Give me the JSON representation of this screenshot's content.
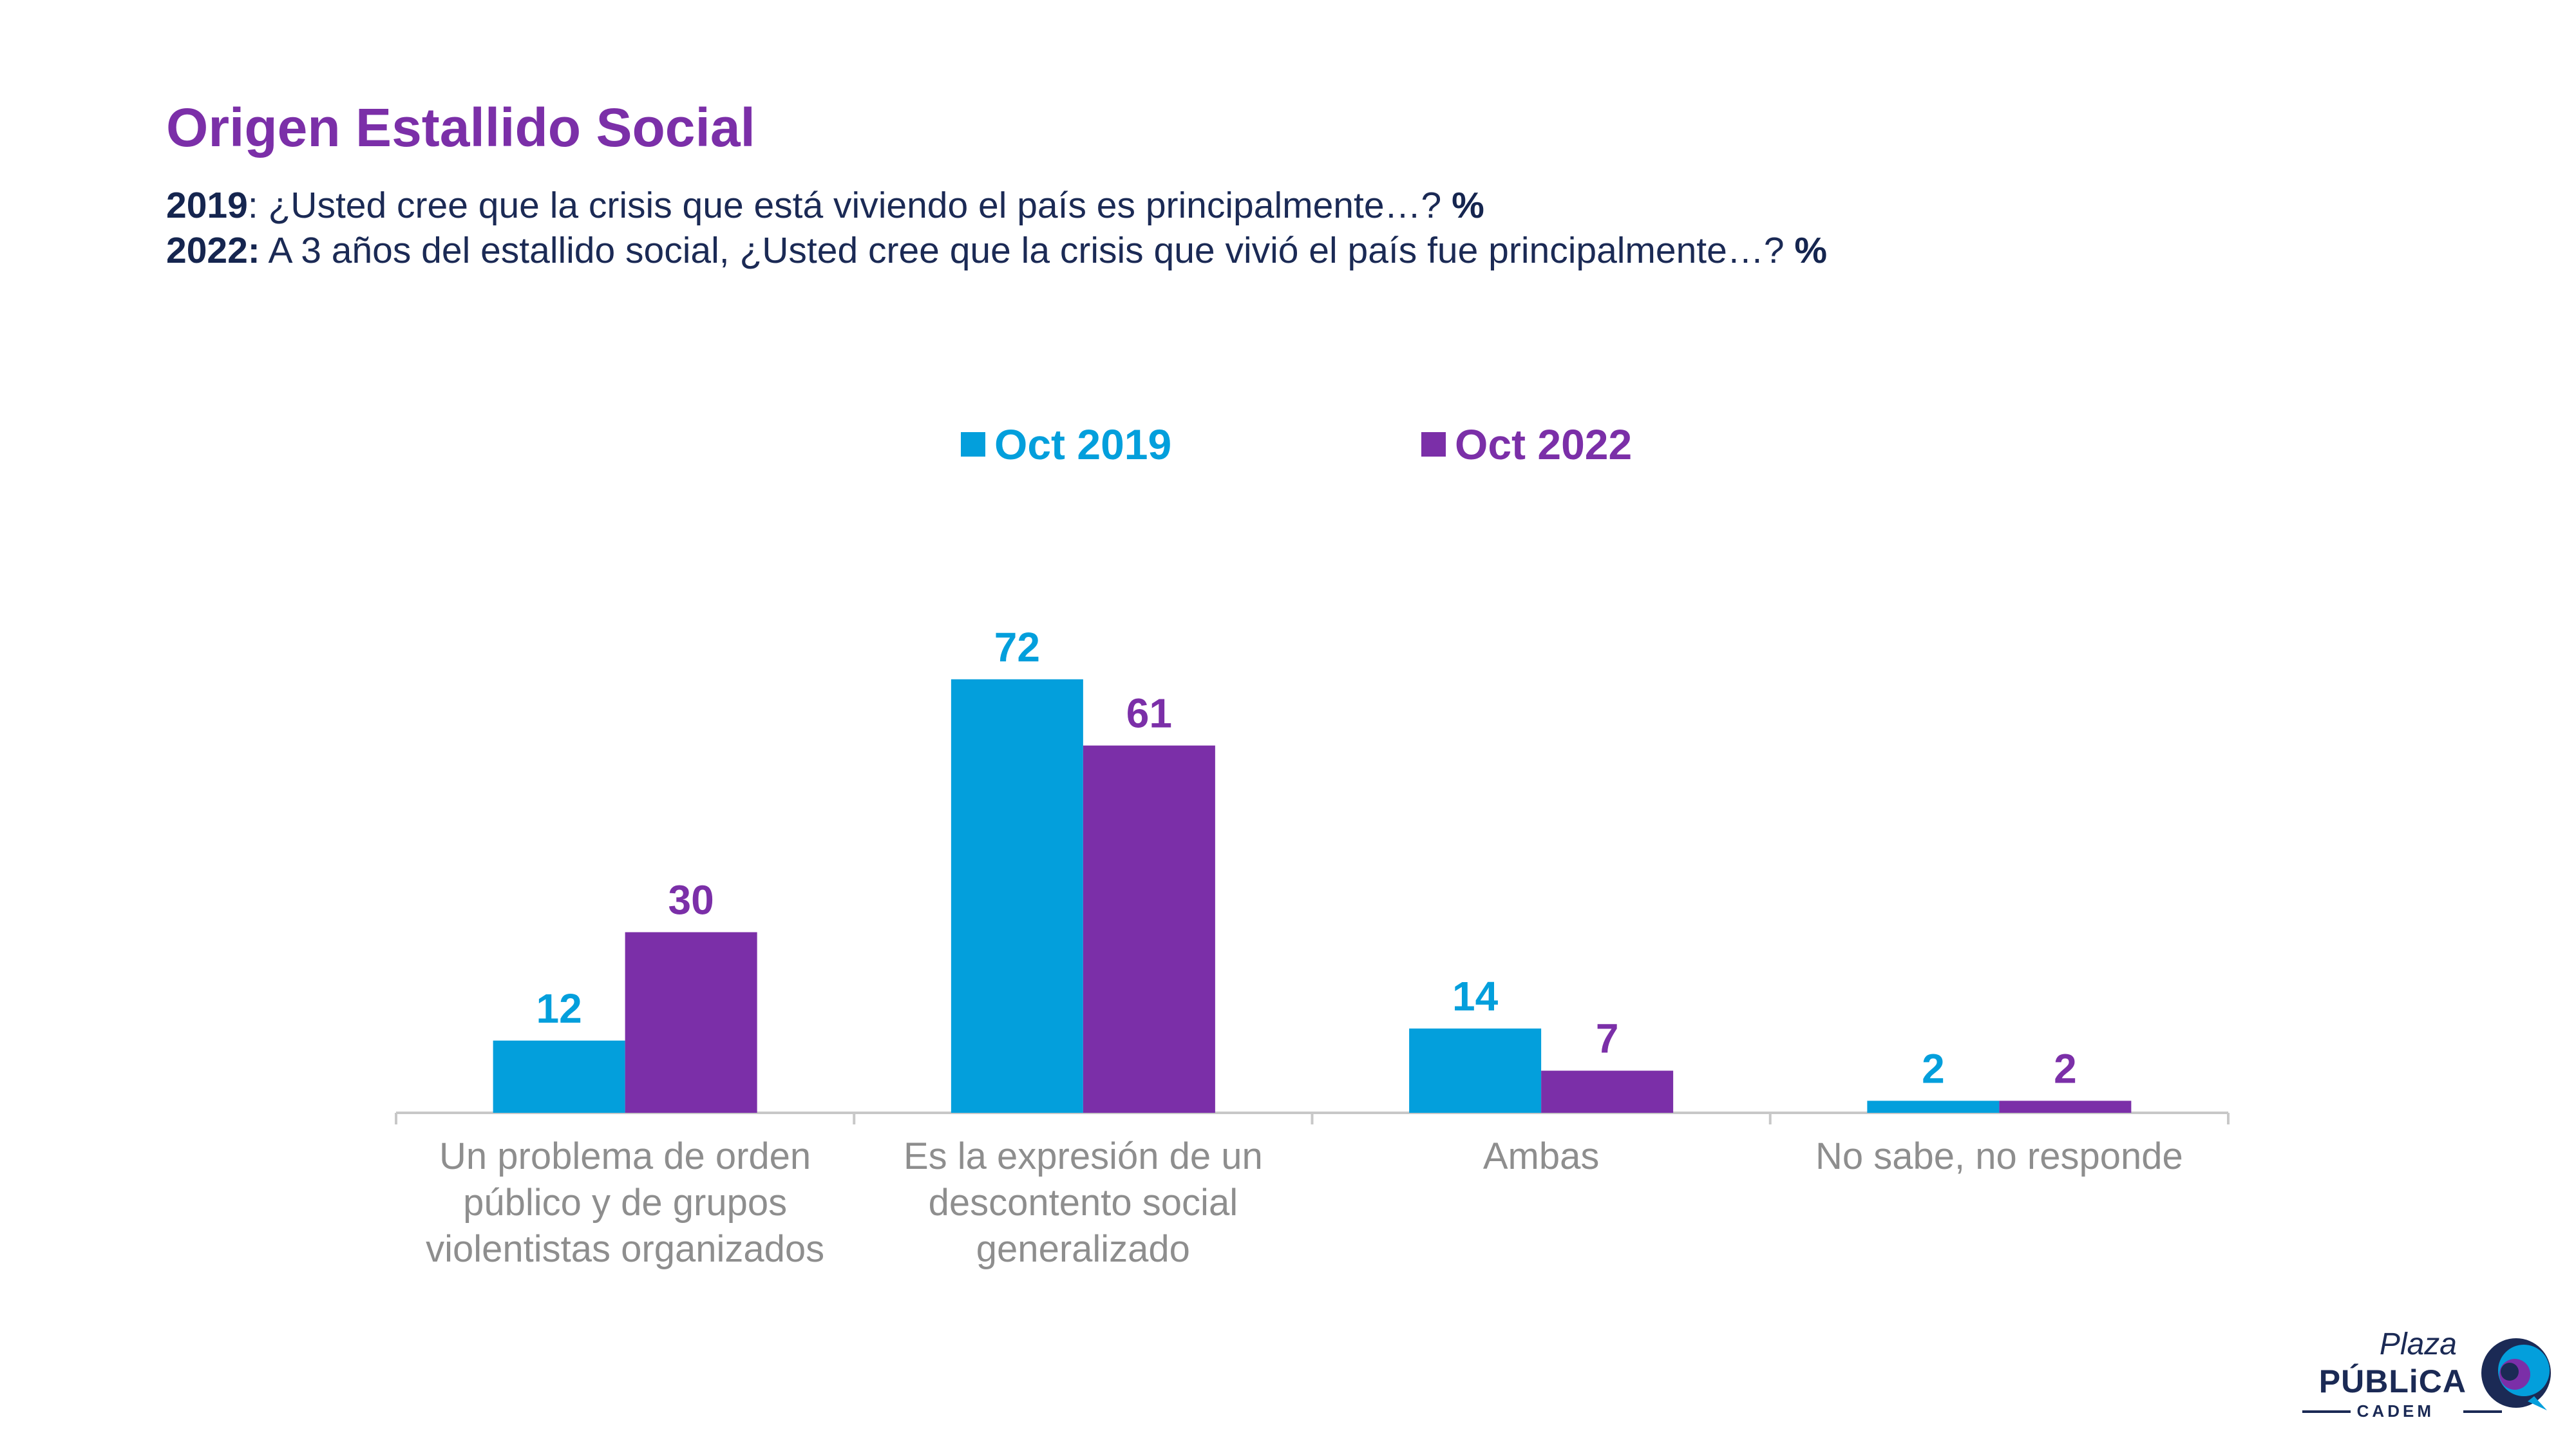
{
  "title": "Origen Estallido Social",
  "questions": [
    {
      "year": "2019",
      "text": ": ¿Usted cree que la crisis que está viviendo el país es principalmente…?",
      "suffix": " %"
    },
    {
      "year": "2022:",
      "text": " A 3 años del estallido social, ¿Usted cree que la crisis que vivió el país fue principalmente…?",
      "suffix": " %"
    }
  ],
  "colors": {
    "series_2019": "#039fdc",
    "series_2022": "#7b2fa8",
    "axis": "#c8c8c8",
    "category_text": "#8e8e8e"
  },
  "chart_data": {
    "type": "bar",
    "categories": [
      "Un problema de orden público y de grupos violentistas organizados",
      "Es la expresión de un descontento social generalizado",
      "Ambas",
      "No sabe, no responde"
    ],
    "category_lines": [
      [
        "Un problema de orden",
        "público y de grupos",
        "violentistas organizados"
      ],
      [
        "Es la expresión de un",
        "descontento social",
        "generalizado"
      ],
      [
        "Ambas"
      ],
      [
        "No sabe, no responde"
      ]
    ],
    "series": [
      {
        "name": "Oct 2019",
        "values": [
          12,
          72,
          14,
          2
        ]
      },
      {
        "name": "Oct 2022",
        "values": [
          30,
          61,
          7,
          2
        ]
      }
    ],
    "ylim": [
      0,
      100
    ],
    "legend_position": "top-center",
    "grid": false,
    "title": "",
    "xlabel": "",
    "ylabel": ""
  },
  "logo": {
    "line1": "Plaza",
    "line2": "PÚBLiCA",
    "line3": "CADEM",
    "icon": "speech-bubble-icon"
  }
}
